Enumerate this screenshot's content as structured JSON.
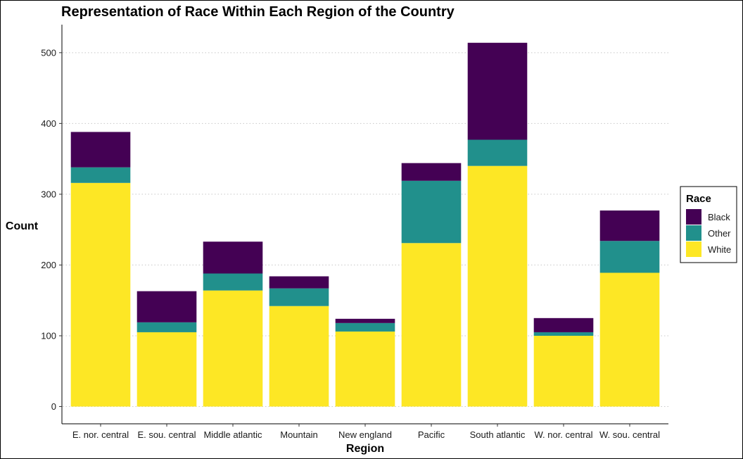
{
  "chart_data": {
    "type": "bar",
    "stacked": true,
    "title": "Representation of Race Within Each Region of the Country",
    "xlabel": "Region",
    "ylabel": "Count",
    "ylim": [
      0,
      535
    ],
    "yticks": [
      0,
      100,
      200,
      300,
      400,
      500
    ],
    "grid": "horizontal-dotted",
    "legend_position": "right",
    "legend_title": "Race",
    "categories": [
      "E. nor. central",
      "E. sou. central",
      "Middle atlantic",
      "Mountain",
      "New england",
      "Pacific",
      "South atlantic",
      "W. nor. central",
      "W. sou. central"
    ],
    "series": [
      {
        "name": "White",
        "color": "#FDE725",
        "values": [
          316,
          105,
          164,
          142,
          106,
          231,
          340,
          100,
          189
        ]
      },
      {
        "name": "Other",
        "color": "#21908C",
        "values": [
          22,
          14,
          24,
          25,
          12,
          88,
          37,
          5,
          45
        ]
      },
      {
        "name": "Black",
        "color": "#440154",
        "values": [
          50,
          44,
          45,
          17,
          6,
          25,
          137,
          20,
          43
        ]
      }
    ],
    "legend_order": [
      "Black",
      "Other",
      "White"
    ]
  }
}
